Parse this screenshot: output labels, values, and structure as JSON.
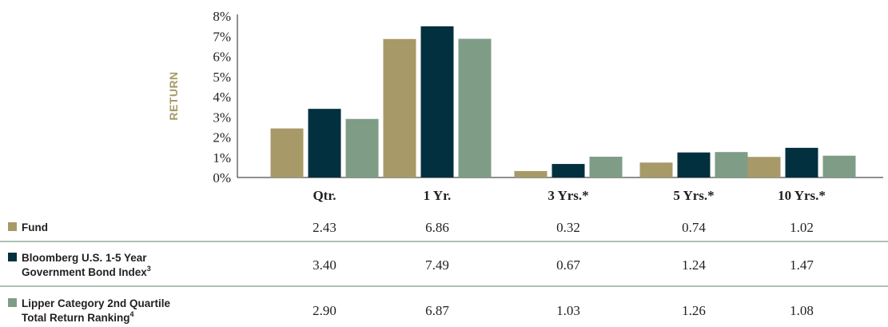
{
  "chart_data": {
    "type": "bar",
    "ylabel": "RETURN",
    "ylim": [
      0,
      8
    ],
    "yticks": [
      "0%",
      "1%",
      "2%",
      "3%",
      "4%",
      "5%",
      "6%",
      "7%",
      "8%"
    ],
    "categories": [
      "Qtr.",
      "1 Yr.",
      "3 Yrs.*",
      "5 Yrs.*",
      "10 Yrs.*"
    ],
    "series": [
      {
        "name": "Fund",
        "name_sup": "",
        "name_line2": "",
        "name_line2_sup": "",
        "color": "#a89a68",
        "values": [
          2.43,
          6.86,
          0.32,
          0.74,
          1.02
        ],
        "labels": [
          "2.43",
          "6.86",
          "0.32",
          "0.74",
          "1.02"
        ]
      },
      {
        "name": "Bloomberg U.S. 1-5 Year",
        "name_sup": "",
        "name_line2": "Government Bond Index",
        "name_line2_sup": "3",
        "color": "#03303f",
        "values": [
          3.4,
          7.49,
          0.67,
          1.24,
          1.47
        ],
        "labels": [
          "3.40",
          "7.49",
          "0.67",
          "1.24",
          "1.47"
        ]
      },
      {
        "name": "Lipper Category 2nd Quartile",
        "name_sup": "",
        "name_line2": "Total Return Ranking",
        "name_line2_sup": "4",
        "color": "#7f9c86",
        "values": [
          2.9,
          6.87,
          1.03,
          1.26,
          1.08
        ],
        "labels": [
          "2.90",
          "6.87",
          "1.03",
          "1.26",
          "1.08"
        ]
      }
    ],
    "grid": false,
    "legend": "table-below"
  }
}
